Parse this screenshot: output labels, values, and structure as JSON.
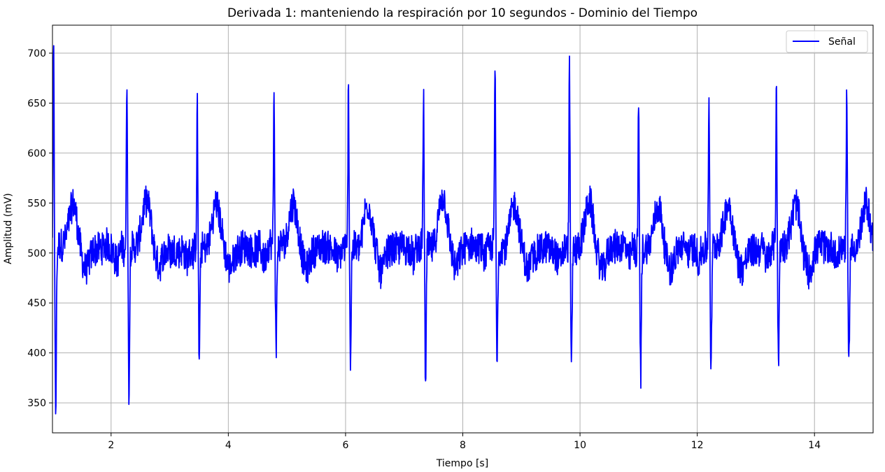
{
  "chart_data": {
    "type": "line",
    "title": "Derivada 1: manteniendo la respiración por 10 segundos - Dominio del Tiempo",
    "xlabel": "Tiempo [s]",
    "ylabel": "Amplitud (mV)",
    "xlim": [
      1.0,
      15.0
    ],
    "ylim": [
      320,
      728
    ],
    "xticks": [
      2,
      4,
      6,
      8,
      10,
      12,
      14
    ],
    "yticks": [
      350,
      400,
      450,
      500,
      550,
      600,
      650,
      700
    ],
    "grid": true,
    "legend_position": "top-right",
    "series": [
      {
        "name": "Señal",
        "color": "#0000ff",
        "baseline": 505,
        "beats": [
          {
            "t": 1.02,
            "peak": 700,
            "trough": 338
          },
          {
            "t": 2.27,
            "peak": 676,
            "trough": 358
          },
          {
            "t": 3.47,
            "peak": 645,
            "trough": 385
          },
          {
            "t": 4.78,
            "peak": 658,
            "trough": 395
          },
          {
            "t": 6.05,
            "peak": 672,
            "trough": 395
          },
          {
            "t": 7.33,
            "peak": 658,
            "trough": 369
          },
          {
            "t": 8.55,
            "peak": 689,
            "trough": 388
          },
          {
            "t": 9.82,
            "peak": 684,
            "trough": 388
          },
          {
            "t": 11.0,
            "peak": 656,
            "trough": 380
          },
          {
            "t": 12.2,
            "peak": 657,
            "trough": 376
          },
          {
            "t": 13.35,
            "peak": 671,
            "trough": 385
          },
          {
            "t": 14.55,
            "peak": 663,
            "trough": 383
          }
        ]
      }
    ]
  }
}
